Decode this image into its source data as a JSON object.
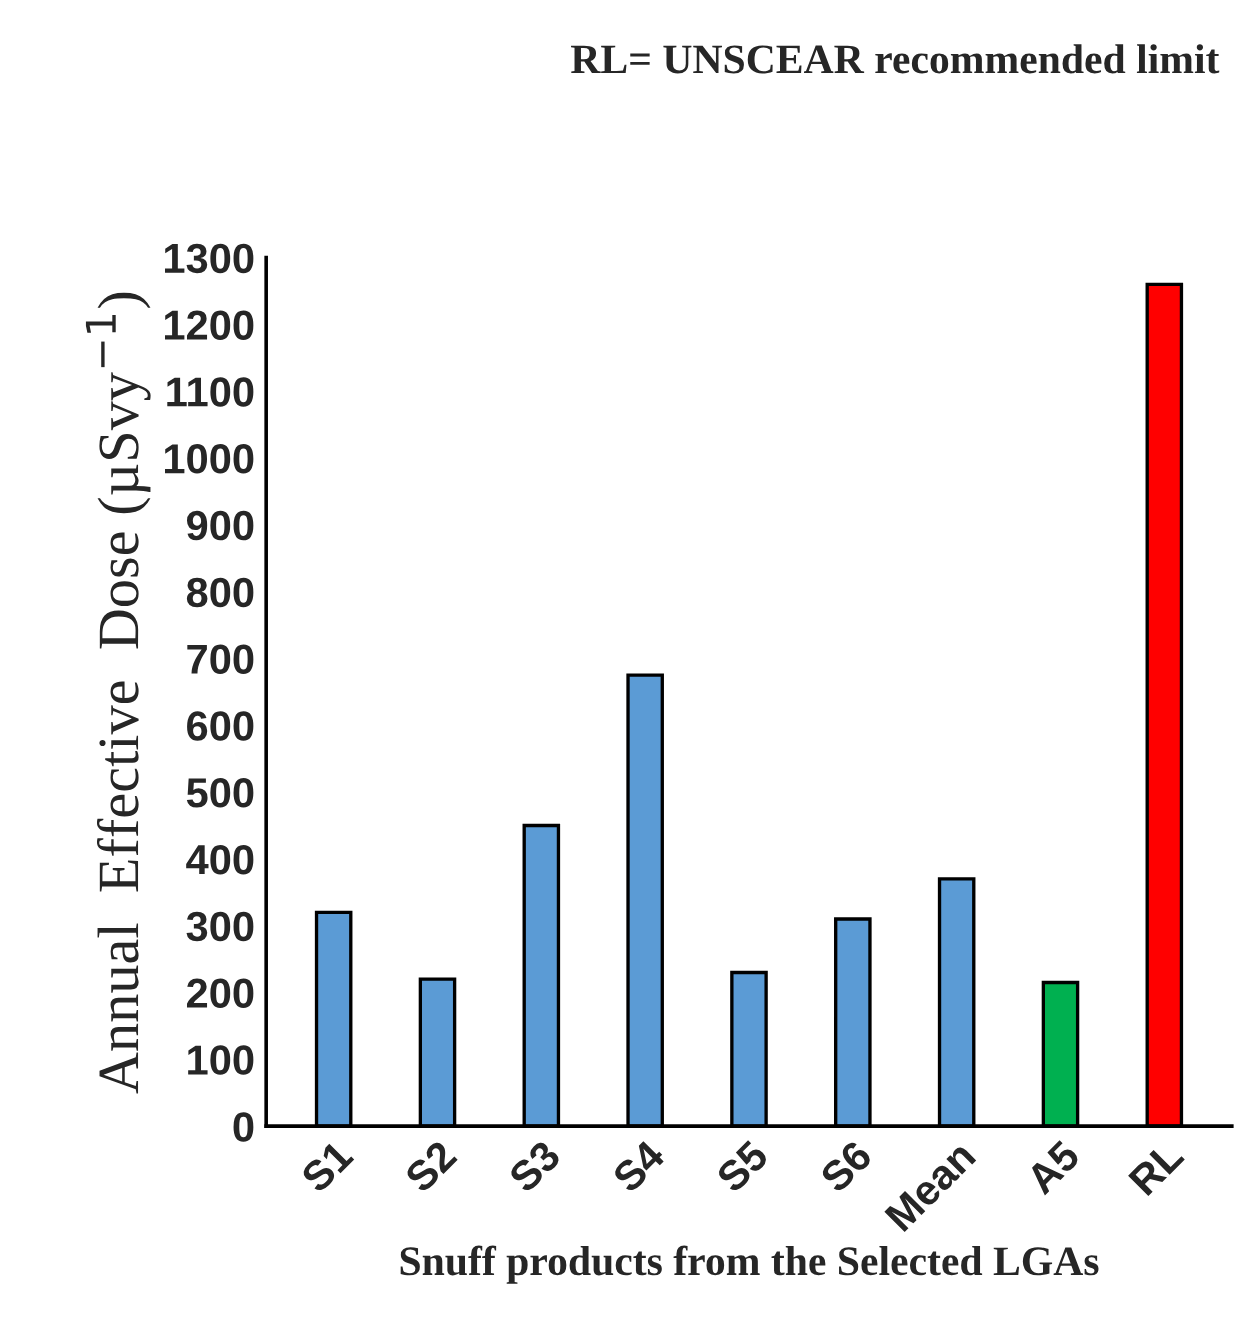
{
  "chart_data": {
    "type": "bar",
    "title": "RL= UNSCEAR recommended limit",
    "xlabel": "Snuff products from the Selected LGAs",
    "ylabel": "Annual  Effective  Dose (µSvy$^{−1}$)",
    "categories": [
      "S1",
      "S2",
      "S3",
      "S4",
      "S5",
      "S6",
      "Mean",
      "A5",
      "RL"
    ],
    "values": [
      320,
      220,
      450,
      675,
      230,
      310,
      370,
      215,
      1260
    ],
    "colors": [
      "#5b9bd5",
      "#5b9bd5",
      "#5b9bd5",
      "#5b9bd5",
      "#5b9bd5",
      "#5b9bd5",
      "#5b9bd5",
      "#00b050",
      "#ff0000"
    ],
    "ylim": [
      0,
      1300
    ],
    "yticks": [
      0,
      100,
      200,
      300,
      400,
      500,
      600,
      700,
      800,
      900,
      1000,
      1100,
      1200,
      1300
    ],
    "grid": false,
    "legend": false
  }
}
